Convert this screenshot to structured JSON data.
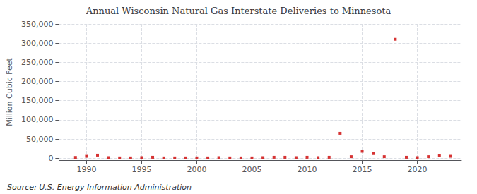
{
  "chart_data": {
    "type": "scatter",
    "title": "Annual Wisconsin Natural Gas Interstate Deliveries to Minnesota",
    "ylabel": "Million Cubic Feet",
    "annotations": [
      "Source: U.S. Energy Information Administration"
    ],
    "x": [
      1989,
      1990,
      1991,
      1992,
      1993,
      1994,
      1995,
      1996,
      1997,
      1998,
      1999,
      2000,
      2001,
      2002,
      2003,
      2004,
      2005,
      2006,
      2007,
      2008,
      2009,
      2010,
      2011,
      2012,
      2013,
      2014,
      2015,
      2016,
      2017,
      2018,
      2019,
      2020,
      2021,
      2022,
      2023
    ],
    "values": [
      2000,
      5000,
      8000,
      1500,
      800,
      800,
      1500,
      2500,
      800,
      800,
      800,
      800,
      800,
      1500,
      800,
      800,
      800,
      1500,
      2500,
      2500,
      1500,
      2500,
      1500,
      2500,
      65000,
      4000,
      18000,
      12000,
      4000,
      310000,
      2500,
      1500,
      4000,
      6000,
      5000
    ],
    "color": "#cc0000",
    "marker": "square",
    "xlim": [
      1987.5,
      2024
    ],
    "ylim": [
      -5000,
      350000
    ],
    "xticks": [
      1990,
      1995,
      2000,
      2005,
      2010,
      2015,
      2020
    ],
    "yticks": [
      0,
      {
        "value": 50000,
        "label": "50,000"
      },
      {
        "value": 100000,
        "label": "100,000"
      },
      {
        "value": 150000,
        "label": "150,000"
      },
      {
        "value": 200000,
        "label": "200,000"
      },
      {
        "value": 250000,
        "label": "250,000"
      },
      {
        "value": 300000,
        "label": "300,000"
      },
      {
        "value": 350000,
        "label": "350,000"
      }
    ],
    "grid": true
  }
}
